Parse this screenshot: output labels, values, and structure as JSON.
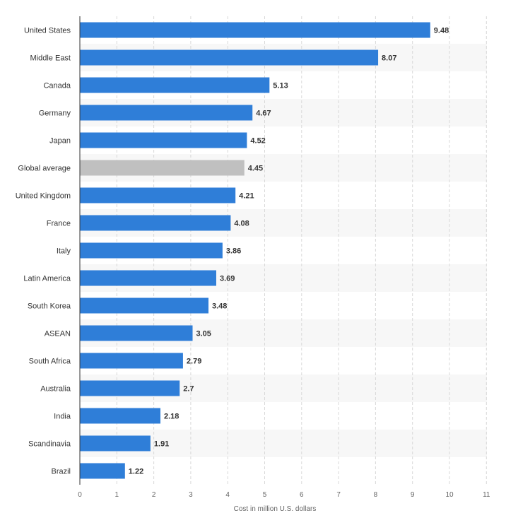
{
  "chart_data": {
    "type": "bar",
    "orientation": "horizontal",
    "categories": [
      "United States",
      "Middle East",
      "Canada",
      "Germany",
      "Japan",
      "Global average",
      "United Kingdom",
      "France",
      "Italy",
      "Latin America",
      "South Korea",
      "ASEAN",
      "South Africa",
      "Australia",
      "India",
      "Scandinavia",
      "Brazil"
    ],
    "values": [
      9.48,
      8.07,
      5.13,
      4.67,
      4.52,
      4.45,
      4.21,
      4.08,
      3.86,
      3.69,
      3.48,
      3.05,
      2.79,
      2.7,
      2.18,
      1.91,
      1.22
    ],
    "value_labels": [
      "9.48",
      "8.07",
      "5.13",
      "4.67",
      "4.52",
      "4.45",
      "4.21",
      "4.08",
      "3.86",
      "3.69",
      "3.48",
      "3.05",
      "2.79",
      "2.7",
      "2.18",
      "1.91",
      "1.22"
    ],
    "highlight_category": "Global average",
    "xlabel": "Cost in million U.S. dollars",
    "ylabel": "",
    "xlim": [
      0,
      11
    ],
    "xticks": [
      "0",
      "1",
      "2",
      "3",
      "4",
      "5",
      "6",
      "7",
      "8",
      "9",
      "10",
      "11"
    ],
    "grid": "vertical dashed",
    "colors": {
      "bar": "#2f7ed8",
      "highlight": "#c0c0c0",
      "band": "#f7f7f7"
    }
  }
}
